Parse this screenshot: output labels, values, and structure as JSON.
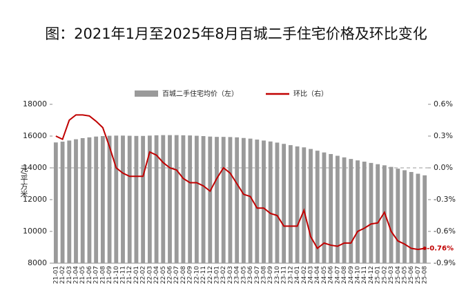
{
  "chart_data": {
    "type": "bar-line",
    "title": "图：2021年1月至2025年8月百城二手住宅价格及环比变化",
    "ylabel": "元/平方米",
    "categories": [
      "21-01",
      "21-02",
      "21-03",
      "21-04",
      "21-05",
      "21-06",
      "21-07",
      "21-08",
      "21-09",
      "21-10",
      "21-11",
      "21-12",
      "22-01",
      "22-02",
      "22-03",
      "22-04",
      "22-05",
      "22-06",
      "22-07",
      "22-08",
      "22-09",
      "22-10",
      "22-11",
      "22-12",
      "23-01",
      "23-02",
      "23-03",
      "23-04",
      "23-05",
      "23-06",
      "23-07",
      "23-08",
      "23-09",
      "23-10",
      "23-11",
      "23-12",
      "24-01",
      "24-02",
      "24-03",
      "24-04",
      "24-05",
      "24-06",
      "24-07",
      "24-08",
      "24-09",
      "24-10",
      "24-11",
      "24-12",
      "25-01",
      "25-02",
      "25-03",
      "25-04",
      "25-05",
      "25-06",
      "25-07",
      "25-08"
    ],
    "series": [
      {
        "name": "百城二手住宅均价（左）",
        "kind": "bar",
        "color": "#9a9a9a",
        "values": [
          15600,
          15650,
          15720,
          15800,
          15870,
          15920,
          15970,
          16000,
          16020,
          16030,
          16030,
          16020,
          16010,
          16010,
          16030,
          16050,
          16060,
          16060,
          16060,
          16050,
          16040,
          16020,
          16000,
          15970,
          15950,
          15950,
          15940,
          15920,
          15880,
          15840,
          15780,
          15720,
          15660,
          15590,
          15510,
          15430,
          15350,
          15290,
          15190,
          15080,
          14970,
          14870,
          14760,
          14660,
          14560,
          14470,
          14390,
          14310,
          14230,
          14160,
          14060,
          13950,
          13850,
          13740,
          13630,
          13530
        ]
      },
      {
        "name": "环比（右）",
        "kind": "line",
        "axis": "y2",
        "color": "#c00000",
        "values": [
          0.3,
          0.27,
          0.45,
          0.5,
          0.5,
          0.49,
          0.44,
          0.38,
          0.2,
          0.0,
          -0.05,
          -0.08,
          -0.08,
          -0.08,
          0.15,
          0.12,
          0.05,
          0.0,
          -0.02,
          -0.1,
          -0.14,
          -0.14,
          -0.17,
          -0.22,
          -0.1,
          0.0,
          -0.05,
          -0.15,
          -0.25,
          -0.27,
          -0.38,
          -0.38,
          -0.43,
          -0.45,
          -0.55,
          -0.55,
          -0.55,
          -0.4,
          -0.65,
          -0.76,
          -0.71,
          -0.73,
          -0.74,
          -0.71,
          -0.71,
          -0.6,
          -0.57,
          -0.53,
          -0.52,
          -0.42,
          -0.6,
          -0.69,
          -0.72,
          -0.76,
          -0.77,
          -0.76
        ],
        "value_labels": [
          null,
          null,
          null,
          null,
          null,
          null,
          null,
          null,
          null,
          null,
          null,
          null,
          null,
          null,
          null,
          null,
          null,
          null,
          null,
          null,
          null,
          null,
          null,
          null,
          null,
          null,
          null,
          null,
          null,
          null,
          null,
          null,
          null,
          null,
          null,
          null,
          null,
          null,
          null,
          null,
          null,
          null,
          null,
          null,
          null,
          null,
          null,
          null,
          null,
          null,
          null,
          null,
          null,
          null,
          null,
          "-0.76%"
        ]
      }
    ],
    "ylim": [
      8000,
      18000
    ],
    "yticks": [
      8000,
      10000,
      12000,
      14000,
      16000,
      18000
    ],
    "y2lim": [
      -0.9,
      0.6
    ],
    "y2ticks": [
      {
        "value": 0.6,
        "label": "0.6%"
      },
      {
        "value": 0.3,
        "label": "0.3%"
      },
      {
        "value": 0.0,
        "label": "0.0%"
      },
      {
        "value": -0.3,
        "label": "-0.3%"
      },
      {
        "value": -0.6,
        "label": "-0.6%"
      },
      {
        "value": -0.9,
        "label": "-0.9%"
      }
    ],
    "zero_line": true
  }
}
